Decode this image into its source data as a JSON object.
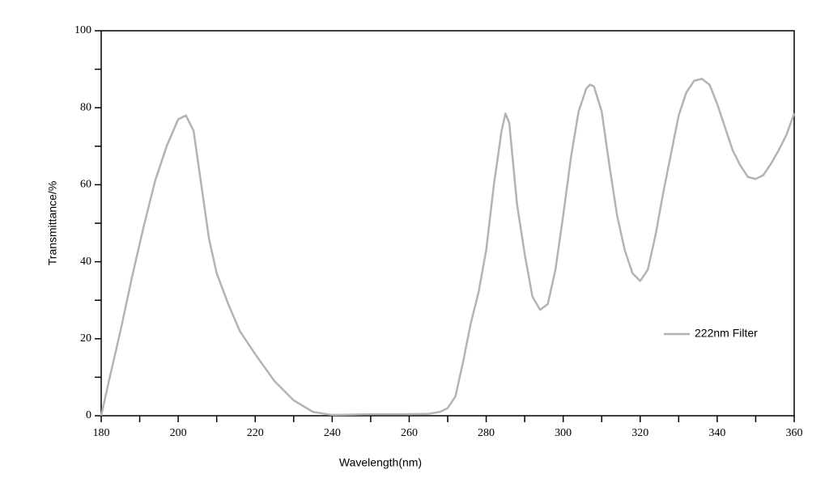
{
  "chart_data": {
    "type": "line",
    "xlabel": "Wavelength(nm)",
    "ylabel": "Transmittance/%",
    "xlim": [
      180,
      360
    ],
    "xticks": [
      180,
      200,
      220,
      240,
      260,
      280,
      300,
      320,
      340,
      360
    ],
    "ylim": [
      0,
      100
    ],
    "yticks": [
      0,
      20,
      40,
      60,
      80,
      100
    ],
    "legend": "right",
    "series": [
      {
        "name": "222nm Filter",
        "color": "#b3b3b3",
        "x": [
          180,
          182,
          185,
          188,
          191,
          194,
          197,
          200,
          202,
          204,
          206,
          208,
          210,
          213,
          216,
          220,
          225,
          230,
          235,
          240,
          245,
          250,
          255,
          260,
          265,
          268,
          270,
          272,
          274,
          276,
          278,
          280,
          282,
          284,
          285,
          286,
          288,
          290,
          292,
          294,
          296,
          298,
          300,
          302,
          304,
          306,
          307,
          308,
          310,
          312,
          314,
          316,
          318,
          320,
          322,
          324,
          326,
          328,
          330,
          332,
          334,
          336,
          338,
          340,
          342,
          344,
          346,
          348,
          350,
          352,
          354,
          356,
          358,
          360
        ],
        "values": [
          0,
          9,
          22,
          36,
          49,
          61,
          70,
          77,
          78,
          74,
          60,
          46,
          37,
          29,
          22,
          16,
          9,
          4,
          1,
          0.2,
          0.3,
          0.4,
          0.4,
          0.4,
          0.5,
          1,
          2,
          5,
          14,
          24,
          32,
          43,
          60,
          74,
          78.5,
          76,
          55,
          42,
          31,
          27.5,
          29,
          38,
          52,
          67,
          79,
          85,
          86,
          85.5,
          79,
          65,
          52,
          43,
          37,
          35,
          38,
          47,
          58,
          68,
          78,
          84,
          87,
          87.5,
          86,
          81,
          75,
          69,
          65,
          62,
          61.5,
          62.5,
          65.5,
          69,
          73,
          78.5
        ]
      }
    ]
  }
}
